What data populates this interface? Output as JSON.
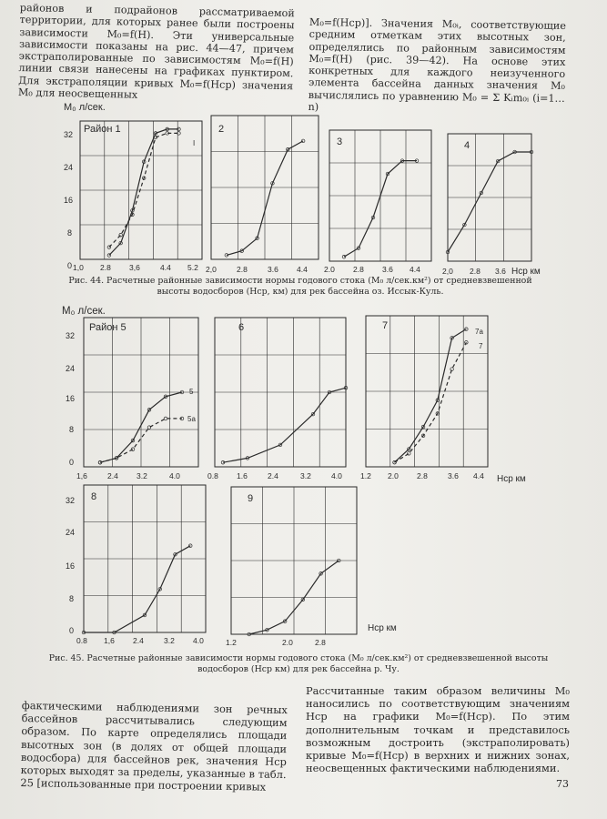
{
  "text": {
    "col1_top": "районов и подрайонов рассматриваемой территории, для которых ранее были построены зависимости M₀=f(H). Эти универсальные зависимости показаны на рис. 44—47, причем экстраполированные по зависимостям M₀=f(H) линии связи нанесены на графиках пунктиром. Для экстраполяции кривых M₀=f(Hср) значения M₀ для неосвещенных",
    "col2_top": "M₀=f(Hср)]. Значения M₀ᵢ, соответствующие средним отметкам этих высотных зон, определялись по районным зависимостям M₀=f(H) (рис. 39—42). На основе этих конкретных для каждого неизученного элемента бассейна данных значения M₀ вычислялись по уравнению M₀ = Σ Kᵢm₀ᵢ (i=1…n)",
    "col1_bottom": "фактическими наблюдениями зон речных бассейнов рассчитывались следующим образом. По карте определялись площади высотных зон (в долях от общей площади водосбора) для бассейнов рек, значения Hср которых выходят за пределы, указанные в табл. 25 [использованные при построении кривых",
    "col2_bottom": "Рассчитанные таким образом величины M₀ наносились по соответствующим значениям Hср на графики M₀=f(Hср). По этим дополнительным точкам и представилось возможным достроить (экстраполировать) кривые M₀=f(Hср) в верхних и нижних зонах, неосвещенных фактическими наблюдениями.",
    "caption_44": "Рис. 44. Расчетные районные зависимости нормы годового стока (M₀ л/сек.км²) от средневзвешенной высоты водосборов (Hср, км) для рек бассейна оз. Иссык-Куль.",
    "caption_45": "Рис. 45. Расчетные районные зависимости нормы годового стока (M₀ л/сек.км²) от средневзвешенной высоты водосборов (Hср км) для рек бассейна р. Чу.",
    "page_number": "73"
  },
  "chart_data": [
    {
      "type": "line",
      "panel": "Район 1",
      "x": [
        2.0,
        2.4,
        2.8,
        3.2,
        3.6,
        4.0,
        4.4
      ],
      "series": [
        {
          "values": [
            1,
            4,
            12,
            24,
            31,
            32,
            32
          ]
        },
        {
          "values": [
            3,
            6,
            11,
            20,
            30,
            31,
            31
          ]
        }
      ]
    },
    {
      "type": "line",
      "panel": "2",
      "x": [
        2.4,
        2.8,
        3.2,
        3.6,
        4.0,
        4.4
      ],
      "series": [
        {
          "values": [
            1,
            2,
            5,
            18,
            26,
            28
          ]
        }
      ]
    },
    {
      "type": "line",
      "panel": "3",
      "x": [
        2.4,
        2.8,
        3.2,
        3.6,
        4.0,
        4.4
      ],
      "series": [
        {
          "values": [
            1,
            3,
            10,
            20,
            23,
            23
          ]
        }
      ]
    },
    {
      "type": "line",
      "panel": "4",
      "x": [
        2.0,
        2.4,
        2.8,
        3.2,
        3.6,
        4.0
      ],
      "series": [
        {
          "values": [
            2,
            8,
            15,
            22,
            24,
            24
          ]
        }
      ]
    },
    {
      "type": "line",
      "panel": "Район 5",
      "x": [
        2.0,
        2.4,
        2.8,
        3.2,
        3.6,
        4.0
      ],
      "series": [
        {
          "name": "5",
          "values": [
            1,
            2,
            6,
            13,
            16,
            17
          ]
        },
        {
          "name": "5а",
          "values": [
            1,
            2,
            4,
            9,
            11,
            11
          ]
        }
      ]
    },
    {
      "type": "line",
      "panel": "6",
      "x": [
        1.0,
        1.6,
        2.4,
        3.2,
        3.6,
        4.0
      ],
      "series": [
        {
          "values": [
            1,
            2,
            5,
            12,
            17,
            18
          ]
        }
      ]
    },
    {
      "type": "line",
      "panel": "7",
      "x": [
        2.0,
        2.4,
        2.8,
        3.2,
        3.6,
        4.0
      ],
      "series": [
        {
          "name": "7а",
          "values": [
            1,
            4,
            9,
            15,
            29,
            31
          ]
        },
        {
          "name": "7",
          "values": [
            1,
            3,
            7,
            12,
            22,
            28
          ]
        }
      ]
    },
    {
      "type": "line",
      "panel": "8",
      "x": [
        0.8,
        1.6,
        2.4,
        2.8,
        3.2,
        3.6
      ],
      "series": [
        {
          "values": [
            0,
            0,
            4,
            10,
            18,
            20
          ]
        }
      ]
    },
    {
      "type": "line",
      "panel": "9",
      "x": [
        1.2,
        1.6,
        2.0,
        2.4,
        2.8,
        3.2
      ],
      "series": [
        {
          "values": [
            0,
            1,
            3,
            8,
            14,
            17
          ]
        }
      ]
    }
  ],
  "labels": {
    "m0_axis": "M₀ л/сек.",
    "h_axis": "Hср км",
    "h_axis_short": "Hср км",
    "fig44": {
      "y_ticks": [
        "32",
        "24",
        "16",
        "8",
        "0"
      ],
      "p1": {
        "title": "Район 1",
        "x_ticks": [
          "1,0",
          "2.8",
          "3,6",
          "4.4",
          "5.2"
        ],
        "tag": "I"
      },
      "p2": {
        "title": "2",
        "x_ticks": [
          "2,0",
          "2.8",
          "3.6",
          "4.4"
        ]
      },
      "p3": {
        "title": "3",
        "x_ticks": [
          "2.0",
          "2.8",
          "3.6",
          "4.4"
        ]
      },
      "p4": {
        "title": "4",
        "x_ticks": [
          "2,0",
          "2.8",
          "3.6"
        ]
      }
    },
    "fig45": {
      "y_ticks": [
        "32",
        "24",
        "16",
        "8",
        "0"
      ],
      "p5": {
        "title": "Район 5",
        "x_ticks": [
          "1,6",
          "2.4",
          "3.2",
          "4.0"
        ],
        "series_5": "5",
        "series_5a": "5а"
      },
      "p6": {
        "title": "6",
        "x_ticks": [
          "0.8",
          "1.6",
          "2.4",
          "3.2",
          "4.0"
        ]
      },
      "p7": {
        "title": "7",
        "x_ticks": [
          "1.2",
          "2.0",
          "2.8",
          "3.6",
          "4.4"
        ],
        "series_7a": "7а",
        "series_7": "7"
      },
      "p8": {
        "title": "8",
        "x_ticks": [
          "0.8",
          "1,6",
          "2.4",
          "3.2",
          "4.0"
        ]
      },
      "p9": {
        "title": "9",
        "x_ticks": [
          "1.2",
          "2.0",
          "2.8"
        ]
      }
    }
  },
  "colors": {
    "ink": "#2a2a2a",
    "paper": "#efeeea"
  }
}
